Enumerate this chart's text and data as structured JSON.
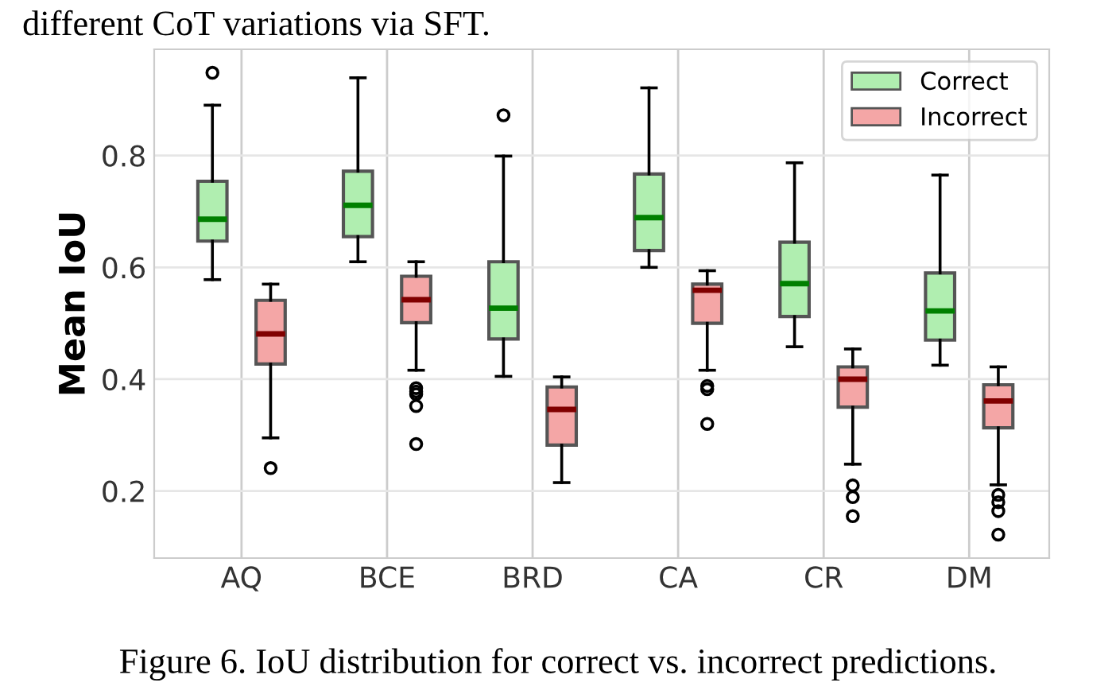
{
  "chart_data": {
    "type": "box",
    "categories": [
      "AQ",
      "BCE",
      "BRD",
      "CA",
      "CR",
      "DM"
    ],
    "ylabel": "Mean IoU",
    "ylim": [
      0.08,
      0.99
    ],
    "yticks": [
      0.2,
      0.4,
      0.6,
      0.8
    ],
    "grid": true,
    "legend": "top right",
    "annotations": [
      "different CoT variations via SFT.",
      "Figure 6. IoU distribution for correct vs. incorrect predictions."
    ],
    "series": [
      {
        "name": "Correct",
        "color": "#b0eeb0",
        "boxes": [
          {
            "low": 0.578,
            "q1": 0.647,
            "median": 0.686,
            "q3": 0.754,
            "high": 0.89,
            "outliers": [
              0.948
            ]
          },
          {
            "low": 0.61,
            "q1": 0.655,
            "median": 0.711,
            "q3": 0.772,
            "high": 0.939
          },
          {
            "low": 0.405,
            "q1": 0.472,
            "median": 0.527,
            "q3": 0.61,
            "high": 0.799,
            "outliers": [
              0.872
            ]
          },
          {
            "low": 0.6,
            "q1": 0.63,
            "median": 0.689,
            "q3": 0.767,
            "high": 0.921
          },
          {
            "low": 0.458,
            "q1": 0.512,
            "median": 0.571,
            "q3": 0.645,
            "high": 0.787
          },
          {
            "low": 0.425,
            "q1": 0.47,
            "median": 0.522,
            "q3": 0.59,
            "high": 0.765
          }
        ]
      },
      {
        "name": "Incorrect",
        "color": "#f4a6a6",
        "boxes": [
          {
            "low": 0.295,
            "q1": 0.427,
            "median": 0.481,
            "q3": 0.541,
            "high": 0.57,
            "outliers": [
              0.241
            ]
          },
          {
            "low": 0.416,
            "q1": 0.501,
            "median": 0.542,
            "q3": 0.584,
            "high": 0.61,
            "outliers": [
              0.384,
              0.378,
              0.373,
              0.352,
              0.284
            ]
          },
          {
            "low": 0.215,
            "q1": 0.282,
            "median": 0.346,
            "q3": 0.386,
            "high": 0.404
          },
          {
            "low": 0.416,
            "q1": 0.5,
            "median": 0.559,
            "q3": 0.57,
            "high": 0.594,
            "outliers": [
              0.388,
              0.382,
              0.32
            ]
          },
          {
            "low": 0.248,
            "q1": 0.35,
            "median": 0.4,
            "q3": 0.422,
            "high": 0.454,
            "outliers": [
              0.21,
              0.189,
              0.155
            ]
          },
          {
            "low": 0.211,
            "q1": 0.313,
            "median": 0.361,
            "q3": 0.39,
            "high": 0.422,
            "outliers": [
              0.193,
              0.18,
              0.164,
              0.122
            ]
          }
        ]
      }
    ]
  }
}
